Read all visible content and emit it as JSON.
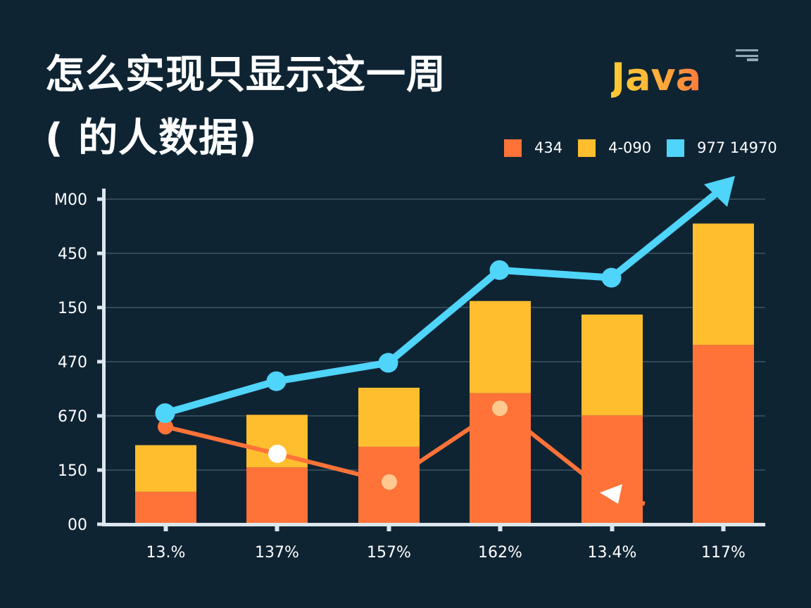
{
  "title": {
    "line1": "怎么实现只显示这一周",
    "line2": "( 的人数据)"
  },
  "brand": {
    "text": "Java",
    "icon": "menu-lines-icon"
  },
  "legend": [
    {
      "label": "434",
      "color": "#ff7338"
    },
    {
      "label": "4-090",
      "color": "#ffbe2e"
    },
    {
      "label": "977  14970",
      "color": "#4fd4fa"
    }
  ],
  "colors": {
    "background": "#0f2433",
    "bar_bottom": "#ff7338",
    "bar_top": "#ffbe2e",
    "line_blue": "#4fd4fa",
    "line_orange": "#ff7338",
    "axis": "#dce6ee",
    "grid": "#3d5565"
  },
  "chart_data": {
    "type": "bar",
    "subtype": "stacked bar with line overlays",
    "title": "怎么实现只显示这一周 ( 的人数据)",
    "xlabel": "",
    "ylabel": "",
    "categories": [
      "13.%",
      "137%",
      "157%",
      "162%",
      "13.4%",
      "117%"
    ],
    "y_tick_labels_top_to_bottom": [
      "M00",
      "450",
      "150",
      "470",
      "670",
      "150",
      "00"
    ],
    "grid": true,
    "legend_position": "top-right",
    "units_note": "values are in grid-step units (0 = baseline, 6 = top tick)",
    "ylim": [
      0,
      6
    ],
    "series": [
      {
        "name": "434",
        "kind": "bar-bottom",
        "color": "#ff7338",
        "values": [
          0.6,
          1.05,
          1.43,
          2.42,
          2.01,
          3.31
        ]
      },
      {
        "name": "4-090",
        "kind": "bar-top",
        "color": "#ffbe2e",
        "values": [
          0.86,
          0.97,
          1.09,
          1.7,
          1.86,
          2.24
        ]
      },
      {
        "name": "977 14970",
        "kind": "line",
        "color": "#4fd4fa",
        "values": [
          2.05,
          2.64,
          2.98,
          4.69,
          4.55,
          6.26
        ],
        "end_marker": "arrow"
      },
      {
        "name": "orange-line",
        "kind": "line",
        "color": "#ff7338",
        "values": [
          1.8,
          1.3,
          0.78,
          2.14,
          0.52,
          0.38
        ],
        "end_marker": "white-arrow"
      }
    ]
  }
}
